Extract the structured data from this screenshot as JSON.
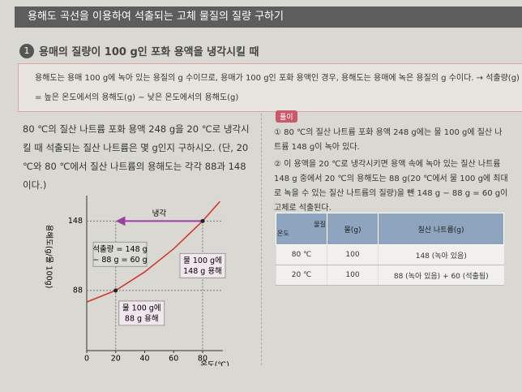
{
  "header": {
    "title": "용해도 곡선을 이용하여 석출되는 고체 물질의 질량 구하기"
  },
  "section": {
    "number": "1",
    "title": "용매의 질량이 100 g인 포화 용액을 냉각시킬 때"
  },
  "note": {
    "text": "용해도는 용매 100 g에 녹아 있는 용질의 g 수이므로, 용매가 100 g인 포화 용액인 경우, 용해도는 용매에 녹은 용질의 g 수이다. → 석출량(g) = 높은 온도에서의 용해도(g) − 낮은 온도에서의 용해도(g)"
  },
  "problem": {
    "text": "80 ℃의 질산 나트륨 포화 용액 248 g을 20 ℃로 냉각시킬 때 석출되는 질산 나트륨은 몇 g인지 구하시오. (단, 20 ℃와 80 ℃에서 질산 나트륨의 용해도는 각각 88과 148이다.)"
  },
  "graph": {
    "y_label": "용해도(g/물 100g)",
    "x_label": "온도(℃)",
    "xlim": [
      0,
      94
    ],
    "ylim": [
      36,
      170
    ],
    "xticks": [
      0,
      20,
      40,
      60,
      80
    ],
    "yticks": [
      88,
      148
    ],
    "curve": {
      "x": [
        0,
        20,
        40,
        60,
        80,
        92
      ],
      "y": [
        78,
        88,
        104,
        124,
        148,
        165
      ]
    },
    "arrow_label": "냉각",
    "annotations": [
      [
        "석출량 = 148 g",
        "− 88 g = 60 g"
      ],
      [
        "물 100 g에",
        "148 g 용해"
      ],
      [
        "물 100 g에",
        "88 g 용해"
      ]
    ]
  },
  "solution": {
    "label": "풀이",
    "steps": [
      "① 80 ℃의 질산 나트륨 포화 용액 248 g에는 물 100 g에 질산 나트륨 148 g이 녹아 있다.",
      "② 이 용액을 20 ℃로 냉각시키면 용액 속에 녹아 있는 질산 나트륨 148 g 중에서 20 ℃의 용해도는 88 g(20 ℃에서 물 100 g에 최대로 녹을 수 있는 질산 나트륨의 질량)을 뺀 148 g − 88 g = 60 g이 고체로 석출된다."
    ]
  },
  "table": {
    "corner": [
      "물질",
      "온도"
    ],
    "headers": [
      "물(g)",
      "질산 나트륨(g)"
    ],
    "rows": [
      [
        "80 ℃",
        "100",
        "148 (녹아 있음)"
      ],
      [
        "20 ℃",
        "100",
        "88 (녹아 있음) + 60 (석출됨)"
      ]
    ]
  }
}
